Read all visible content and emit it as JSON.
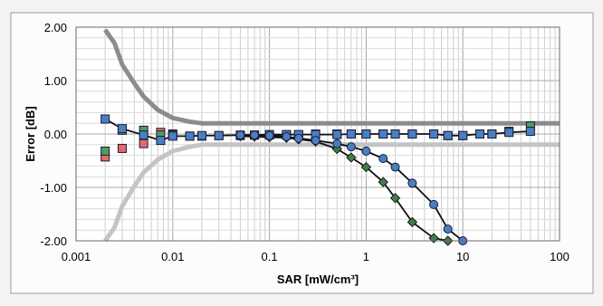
{
  "chart_data": {
    "type": "line",
    "title": "",
    "xlabel": "SAR [mW/cm³]",
    "ylabel": "Error [dB]",
    "x_scale": "log",
    "xlim": [
      0.001,
      100
    ],
    "ylim": [
      -2.0,
      2.0
    ],
    "x_ticks": [
      0.001,
      0.01,
      0.1,
      1,
      10,
      100
    ],
    "x_tick_labels": [
      "0.001",
      "0.01",
      "0.1",
      "1",
      "10",
      "100"
    ],
    "y_ticks": [
      -2.0,
      -1.0,
      0.0,
      1.0,
      2.0
    ],
    "y_tick_labels": [
      "-2.00",
      "-1.00",
      "0.00",
      "1.00",
      "2.00"
    ],
    "grid": true,
    "legend": "none",
    "series": [
      {
        "style": "line",
        "color": "#8c8c8c",
        "x": [
          0.002,
          0.0025,
          0.003,
          0.004,
          0.005,
          0.007,
          0.01,
          0.015,
          0.02,
          0.05,
          0.1,
          1,
          10,
          100
        ],
        "y": [
          1.95,
          1.7,
          1.3,
          0.95,
          0.7,
          0.45,
          0.3,
          0.23,
          0.2,
          0.2,
          0.2,
          0.2,
          0.2,
          0.2
        ]
      },
      {
        "style": "line",
        "color": "#c4c4c4",
        "x": [
          0.002,
          0.0025,
          0.003,
          0.004,
          0.005,
          0.007,
          0.01,
          0.015,
          0.02,
          0.05,
          0.1,
          1,
          10,
          100
        ],
        "y": [
          -2.0,
          -1.75,
          -1.35,
          -0.98,
          -0.72,
          -0.48,
          -0.32,
          -0.24,
          -0.2,
          -0.2,
          -0.2,
          -0.2,
          -0.2,
          -0.2
        ]
      },
      {
        "style": "markers",
        "marker": "square",
        "color": "#e36a6a",
        "x": [
          0.002,
          0.003,
          0.005,
          0.0075,
          0.01
        ],
        "y": [
          -0.43,
          -0.27,
          -0.18,
          0.03,
          0.0
        ]
      },
      {
        "style": "markers",
        "marker": "square",
        "color": "#4aa05a",
        "x": [
          0.002,
          0.003,
          0.005,
          0.0075,
          0.01,
          0.015,
          0.02,
          0.03,
          0.05,
          0.07,
          0.1,
          0.15,
          0.2,
          0.3,
          0.5,
          0.7,
          1,
          1.5,
          2,
          3,
          5,
          7,
          10,
          15,
          20,
          30,
          50
        ],
        "y": [
          -0.32,
          0.07,
          0.07,
          -0.02,
          -0.02,
          -0.04,
          -0.04,
          -0.03,
          -0.03,
          -0.02,
          -0.02,
          -0.02,
          -0.02,
          0.0,
          0.0,
          0.0,
          0.0,
          0.0,
          0.0,
          0.0,
          0.0,
          -0.03,
          -0.03,
          0.0,
          0.0,
          0.05,
          0.15
        ]
      },
      {
        "style": "line-markers",
        "marker": "square",
        "color": "#4a7fc1",
        "x": [
          0.002,
          0.003,
          0.005,
          0.0075,
          0.01,
          0.015,
          0.02,
          0.03,
          0.05,
          0.07,
          0.1,
          0.15,
          0.2,
          0.3,
          0.5,
          0.7,
          1,
          1.5,
          2,
          3,
          5,
          7,
          10,
          15,
          20,
          30,
          50
        ],
        "y": [
          0.28,
          0.1,
          -0.02,
          -0.12,
          -0.04,
          -0.04,
          -0.03,
          -0.03,
          -0.02,
          -0.02,
          -0.01,
          -0.01,
          -0.01,
          -0.01,
          -0.01,
          0.0,
          0.0,
          0.0,
          0.0,
          0.0,
          0.0,
          -0.03,
          -0.03,
          0.0,
          0.0,
          0.03,
          0.05
        ]
      },
      {
        "style": "line-markers",
        "marker": "diamond",
        "color": "#3f7f4a",
        "x": [
          0.05,
          0.07,
          0.1,
          0.15,
          0.2,
          0.3,
          0.5,
          0.7,
          1,
          1.5,
          2,
          3,
          5,
          7
        ],
        "y": [
          -0.04,
          -0.05,
          -0.06,
          -0.07,
          -0.1,
          -0.14,
          -0.28,
          -0.44,
          -0.62,
          -0.9,
          -1.2,
          -1.65,
          -1.95,
          -2.0
        ]
      },
      {
        "style": "line-markers",
        "marker": "circle",
        "color": "#4a7fc1",
        "x": [
          0.05,
          0.07,
          0.1,
          0.15,
          0.2,
          0.3,
          0.5,
          0.7,
          1,
          1.5,
          2,
          3,
          5,
          7,
          10
        ],
        "y": [
          -0.02,
          -0.02,
          -0.03,
          -0.05,
          -0.08,
          -0.12,
          -0.18,
          -0.24,
          -0.32,
          -0.46,
          -0.62,
          -0.92,
          -1.32,
          -1.78,
          -2.0
        ]
      }
    ]
  }
}
